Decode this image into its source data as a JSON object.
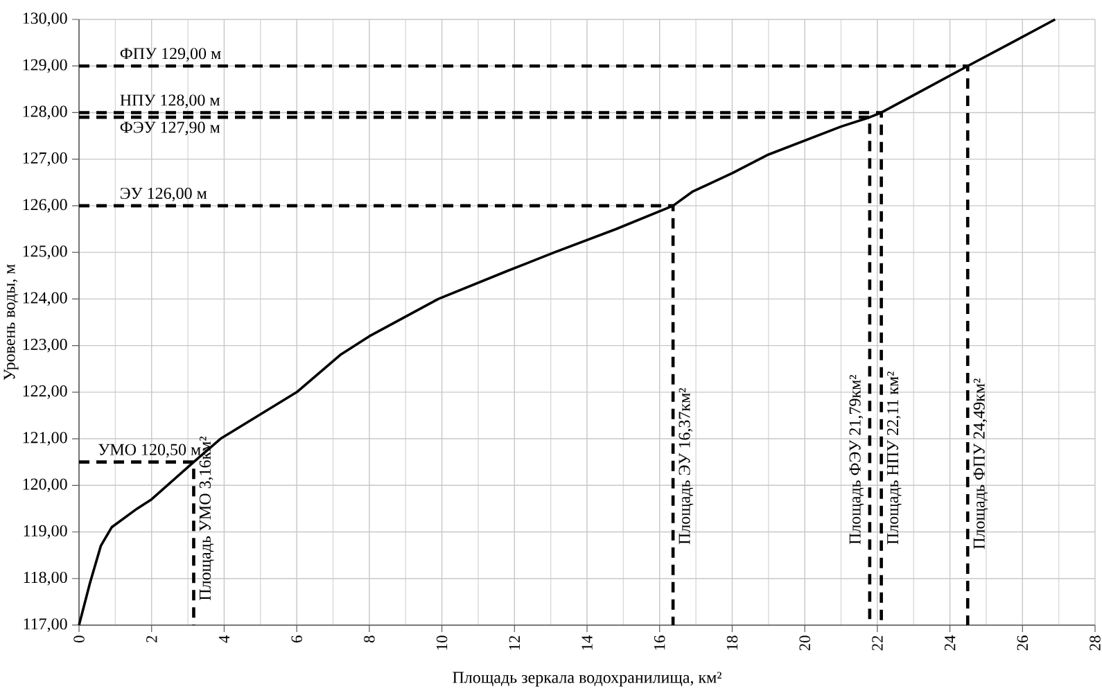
{
  "chart_data": {
    "type": "line",
    "xlabel": "Площадь зеркала водохранилища, км²",
    "ylabel": "Уровень воды, м",
    "xlim": [
      0,
      28
    ],
    "ylim": [
      117,
      130
    ],
    "xticks": [
      0,
      {
        "value": 1,
        "label": null
      },
      2,
      {
        "value": 3,
        "label": null
      },
      4,
      {
        "value": 5,
        "label": null
      },
      6,
      {
        "value": 7,
        "label": null
      },
      8,
      {
        "value": 9,
        "label": null
      },
      10,
      {
        "value": 11,
        "label": null
      },
      12,
      {
        "value": 13,
        "label": null
      },
      14,
      {
        "value": 15,
        "label": null
      },
      16,
      {
        "value": 17,
        "label": null
      },
      18,
      {
        "value": 19,
        "label": null
      },
      20,
      {
        "value": 21,
        "label": null
      },
      22,
      {
        "value": 23,
        "label": null
      },
      24,
      {
        "value": 25,
        "label": null
      },
      26,
      {
        "value": 27,
        "label": null
      },
      28
    ],
    "yticks": [
      {
        "value": 117,
        "label": "117,00"
      },
      {
        "value": 118,
        "label": "118,00"
      },
      {
        "value": 119,
        "label": "119,00"
      },
      {
        "value": 120,
        "label": "120,00"
      },
      {
        "value": 121,
        "label": "121,00"
      },
      {
        "value": 122,
        "label": "122,00"
      },
      {
        "value": 123,
        "label": "123,00"
      },
      {
        "value": 124,
        "label": "124,00"
      },
      {
        "value": 125,
        "label": "125,00"
      },
      {
        "value": 126,
        "label": "126,00"
      },
      {
        "value": 127,
        "label": "127,00"
      },
      {
        "value": 128,
        "label": "128,00"
      },
      {
        "value": 129,
        "label": "129,00"
      },
      {
        "value": 130,
        "label": "130,00"
      }
    ],
    "grid": true,
    "marker": "none",
    "series": [
      {
        "color": "#000000",
        "line_style": "solid",
        "x": [
          0,
          0.3,
          0.6,
          0.9,
          1.6,
          2.0,
          3.16,
          3.9,
          6.0,
          7.2,
          8.0,
          9.9,
          11.8,
          13.1,
          14.8,
          16.37,
          16.9,
          18.0,
          19.0,
          20.0,
          21.0,
          21.79,
          22.11,
          23.3,
          24.49,
          25.7,
          26.9
        ],
        "values": [
          117,
          117.9,
          118.7,
          119.1,
          119.5,
          119.7,
          120.5,
          121.0,
          122.0,
          122.8,
          123.2,
          124.0,
          124.6,
          125.0,
          125.5,
          126.0,
          126.3,
          126.7,
          127.1,
          127.4,
          127.7,
          127.9,
          128.0,
          128.5,
          129.0,
          129.5,
          130.0
        ]
      },
      {
        "color": "#000000",
        "line_style": "dashed",
        "x": [
          0,
          3.16,
          3.16
        ],
        "values": [
          120.5,
          120.5,
          117
        ]
      },
      {
        "color": "#000000",
        "line_style": "dashed",
        "x": [
          0,
          16.37,
          16.37
        ],
        "values": [
          126,
          126,
          117
        ]
      },
      {
        "color": "#000000",
        "line_style": "dashed",
        "x": [
          0,
          21.79,
          21.79
        ],
        "values": [
          127.9,
          127.9,
          117
        ]
      },
      {
        "color": "#000000",
        "line_style": "dashed",
        "x": [
          0,
          22.11,
          22.11
        ],
        "values": [
          128,
          128,
          117
        ]
      },
      {
        "color": "#000000",
        "line_style": "dashed",
        "x": [
          0,
          24.49,
          24.49
        ],
        "values": [
          129,
          129,
          117
        ]
      }
    ],
    "annotations": [
      {
        "text": "ФПУ 129,00 м",
        "x": 1,
        "y": 129
      },
      {
        "text": "НПУ 128,00 м",
        "x": 1,
        "y": 128
      },
      {
        "text": "ФЭУ 127,90 м",
        "x": 1,
        "y": 127.9
      },
      {
        "text": "ЭУ 126,00 м",
        "x": 1,
        "y": 126
      },
      {
        "text": "УМО 120,50 м",
        "x": 0.4,
        "y": 120.5
      },
      {
        "text": "Площадь УМО 3,16км²",
        "x": 3.16,
        "y": 117.4
      },
      {
        "text": "Площадь ЭУ 16,37км²",
        "x": 16.37,
        "y": 118.6
      },
      {
        "text": "Площадь ФЭУ 21,79км²",
        "x": 21.79,
        "y": 118.6
      },
      {
        "text": "Площадь НПУ 22,11 км²",
        "x": 22.11,
        "y": 118.6
      },
      {
        "text": "Площадь ФПУ 24,49км²",
        "x": 24.49,
        "y": 118.5
      }
    ]
  }
}
